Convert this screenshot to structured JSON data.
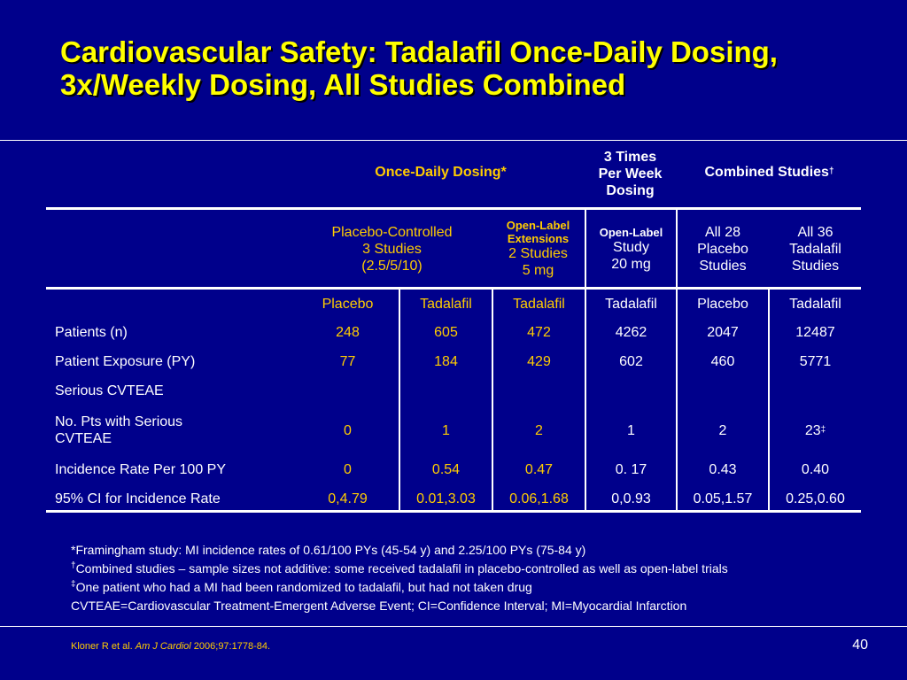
{
  "title": {
    "line1": "Cardiovascular Safety: Tadalafil Once-Daily Dosing,",
    "line2": "3x/Weekly Dosing, All Studies Combined"
  },
  "table": {
    "header_row1": {
      "once_daily": "Once-Daily Dosing*",
      "three_times_l1": "3 Times",
      "three_times_l2": "Per Week",
      "three_times_l3": "Dosing",
      "combined": "Combined Studies",
      "combined_mark": "†"
    },
    "header_row2": {
      "placebo_controlled_l1": "Placebo-Controlled",
      "placebo_controlled_l2": "3 Studies",
      "placebo_controlled_l3": "(2.5/5/10)",
      "open_label_ext_l1": "Open-Label",
      "open_label_ext_l2": "Extensions",
      "open_label_ext_l3": "2 Studies",
      "open_label_ext_l4": "5 mg",
      "open_label_study_l1": "Open-Label",
      "open_label_study_l2": "Study",
      "open_label_study_l3": "20 mg",
      "all28_l1": "All 28",
      "all28_l2": "Placebo",
      "all28_l3": "Studies",
      "all36_l1": "All 36",
      "all36_l2": "Tadalafil",
      "all36_l3": "Studies"
    },
    "columns": [
      "Placebo",
      "Tadalafil",
      "Tadalafil",
      "Tadalafil",
      "Placebo",
      "Tadalafil"
    ],
    "rows": [
      {
        "label": "Patients (n)",
        "values": [
          "248",
          "605",
          "472",
          "4262",
          "2047",
          "12487"
        ]
      },
      {
        "label": "Patient Exposure (PY)",
        "values": [
          "77",
          "184",
          "429",
          "602",
          "460",
          "5771"
        ]
      },
      {
        "label": "Serious CVTEAE",
        "values": [
          "",
          "",
          "",
          "",
          "",
          ""
        ]
      },
      {
        "label_l1": "No. Pts with Serious",
        "label_l2": "CVTEAE",
        "values": [
          "0",
          "1",
          "2",
          "1",
          "2",
          "23"
        ],
        "last_mark": "‡"
      },
      {
        "label": "Incidence Rate Per 100 PY",
        "values": [
          "0",
          "0.54",
          "0.47",
          "0. 17",
          "0.43",
          "0.40"
        ]
      },
      {
        "label": "95% CI for Incidence Rate",
        "values": [
          "0,4.79",
          "0.01,3.03",
          "0.06,1.68",
          "0,0.93",
          "0.05,1.57",
          "0.25,0.60"
        ]
      }
    ]
  },
  "footnotes": {
    "f1": "*Framingham study: MI incidence rates of 0.61/100 PYs (45-54 y) and 2.25/100 PYs (75-84 y)",
    "f2_mark": "†",
    "f2": "Combined studies – sample sizes not additive:  some received tadalafil in placebo-controlled as well as open-label trials",
    "f3_mark": "‡",
    "f3": "One patient who had a MI had been randomized to tadalafil, but had not taken drug",
    "f4": "CVTEAE=Cardiovascular Treatment-Emergent Adverse Event; CI=Confidence Interval; MI=Myocardial Infarction"
  },
  "citation": {
    "authors": "Kloner R et al. ",
    "journal": "Am J Cardiol",
    "ref": " 2006;97:1778-84."
  },
  "page_number": "40",
  "colors": {
    "background": "#00008b",
    "title": "#ffff00",
    "accent": "#ffcc00",
    "text": "#ffffff"
  }
}
